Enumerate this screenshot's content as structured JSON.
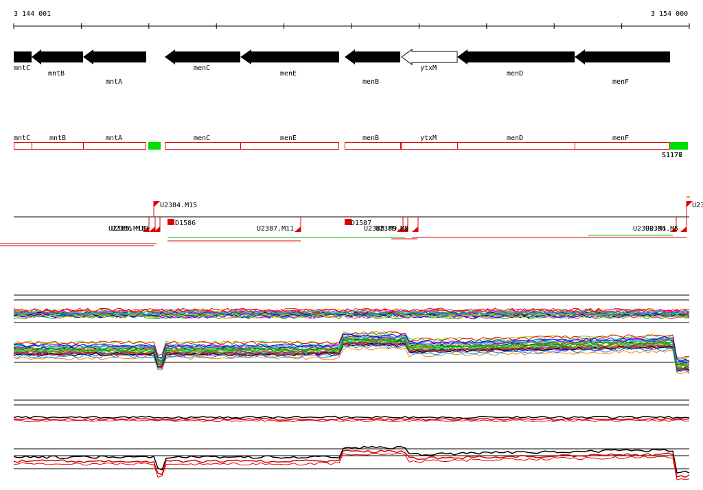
{
  "ruler": {
    "start": "3 144 001",
    "end": "3 154 000"
  },
  "colors": {
    "feature": "#000000",
    "annotation": "#e00000",
    "sRNA": "#00dd00",
    "background": "#ffffff"
  },
  "genes": [
    {
      "name": "mntC",
      "strand": "-",
      "filled": true
    },
    {
      "name": "mntB",
      "strand": "-",
      "filled": true
    },
    {
      "name": "mntA",
      "strand": "-",
      "filled": true
    },
    {
      "name": "menC",
      "strand": "-",
      "filled": true
    },
    {
      "name": "menE",
      "strand": "-",
      "filled": true
    },
    {
      "name": "menB",
      "strand": "-",
      "filled": true
    },
    {
      "name": "ytxM",
      "strand": "-",
      "filled": false
    },
    {
      "name": "menD",
      "strand": "-",
      "filled": true
    },
    {
      "name": "menF",
      "strand": "-",
      "filled": true
    }
  ],
  "annotation_boxes": [
    "mntC",
    "mntB",
    "mntA",
    "menC",
    "menE",
    "menB",
    "ytxM",
    "menD",
    "menF"
  ],
  "green_label": "S1176",
  "green_label_overlap": "S1177",
  "markers": [
    {
      "label": "U2384.M15",
      "kind": "flag-up"
    },
    {
      "label": "U23",
      "kind": "flag-up-edge"
    },
    {
      "label": "D1586",
      "kind": "block"
    },
    {
      "label": "D1587",
      "kind": "block"
    },
    {
      "label": "U2387.M11",
      "kind": "flag-down"
    },
    {
      "label": "U2385.M14",
      "kind": "flag-down-cluster"
    },
    {
      "label": "U2386.M19",
      "kind": "flag-down-cluster"
    },
    {
      "label": "U2388.M9",
      "kind": "flag-down-cluster"
    },
    {
      "label": "U2389.M8",
      "kind": "flag-down-cluster"
    },
    {
      "label": "U2390.M6",
      "kind": "flag-down-cluster"
    },
    {
      "label": "U2391.M5",
      "kind": "flag-down-cluster"
    }
  ],
  "tracks": [
    "tiling-array-profiles",
    "condition-summary-profiles"
  ]
}
